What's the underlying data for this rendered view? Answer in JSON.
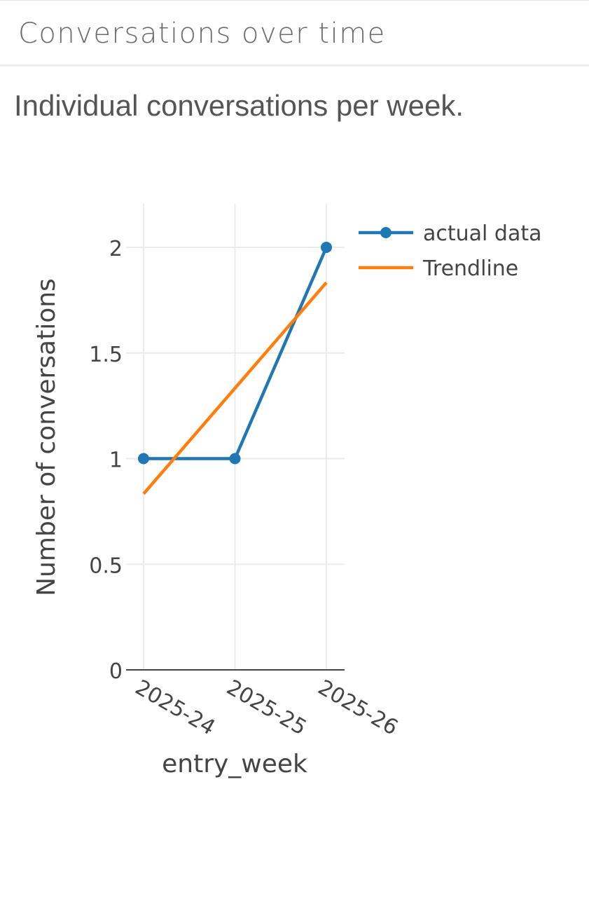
{
  "card": {
    "title": "Conversations over time",
    "subtitle": "Individual conversations per week."
  },
  "chart_data": {
    "type": "line",
    "categories": [
      "2025-24",
      "2025-25",
      "2025-26"
    ],
    "series": [
      {
        "name": "actual data",
        "values": [
          1,
          1,
          2
        ],
        "color": "#1f77b4",
        "markers": true
      },
      {
        "name": "Trendline",
        "values": [
          0.8333,
          1.3333,
          1.8333
        ],
        "color": "#ff7f0e",
        "markers": false
      }
    ],
    "xlabel": "entry_week",
    "ylabel": "Number of conversations",
    "yticks": [
      0,
      0.5,
      1,
      1.5,
      2
    ],
    "ytick_labels": [
      "0",
      "0.5",
      "1",
      "1.5",
      "2"
    ],
    "ylim": [
      0,
      2.2
    ],
    "grid": true,
    "legend_position": "top-right"
  }
}
